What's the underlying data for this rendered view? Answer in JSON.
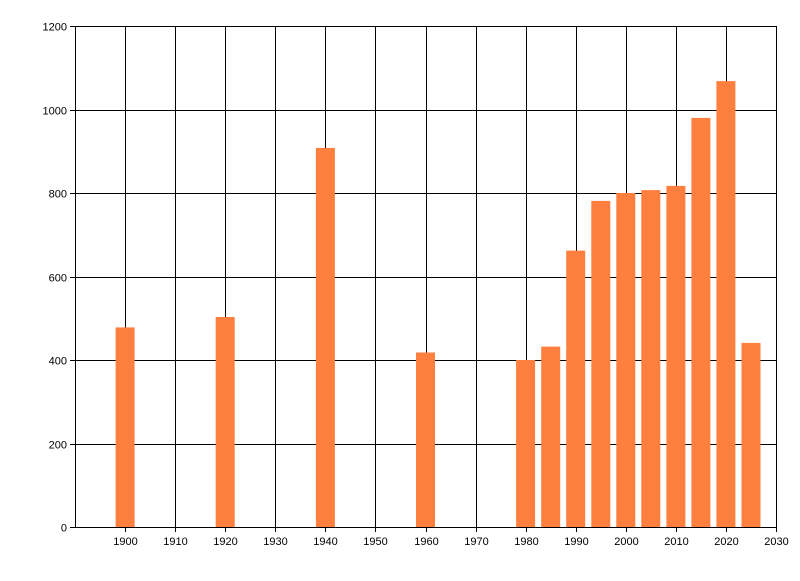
{
  "chart_data": {
    "type": "bar",
    "title": "",
    "xlabel": "",
    "ylabel": "",
    "x": [
      1900,
      1920,
      1940,
      1960,
      1980,
      1985,
      1990,
      1995,
      2000,
      2005,
      2010,
      2015,
      2020,
      2025
    ],
    "values": [
      478,
      503,
      908,
      418,
      400,
      432,
      662,
      781,
      800,
      807,
      817,
      980,
      1068,
      441
    ],
    "xlim": [
      1890,
      2030
    ],
    "ylim": [
      0,
      1200
    ],
    "xticks": [
      1900,
      1910,
      1920,
      1930,
      1940,
      1950,
      1960,
      1970,
      1980,
      1990,
      2000,
      2010,
      2020,
      2030
    ],
    "yticks": [
      0,
      200,
      400,
      600,
      800,
      1000,
      1200
    ],
    "grid": true,
    "bar_color": "#ff7f3f",
    "grid_color": "#000000"
  }
}
